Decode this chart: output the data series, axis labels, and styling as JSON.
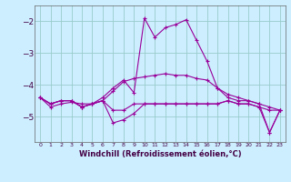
{
  "xlabel": "Windchill (Refroidissement éolien,°C)",
  "x": [
    0,
    1,
    2,
    3,
    4,
    5,
    6,
    7,
    8,
    9,
    10,
    11,
    12,
    13,
    14,
    15,
    16,
    17,
    18,
    19,
    20,
    21,
    22,
    23
  ],
  "line1": [
    -4.4,
    -4.6,
    -4.5,
    -4.5,
    -4.7,
    -4.6,
    -4.5,
    -4.8,
    -4.8,
    -4.6,
    -4.6,
    -4.6,
    -4.6,
    -4.6,
    -4.6,
    -4.6,
    -4.6,
    -4.6,
    -4.5,
    -4.6,
    -4.6,
    -4.7,
    -4.8,
    -4.8
  ],
  "line2": [
    -4.4,
    -4.6,
    -4.5,
    -4.5,
    -4.7,
    -4.6,
    -4.5,
    -5.2,
    -5.1,
    -4.9,
    -4.6,
    -4.6,
    -4.6,
    -4.6,
    -4.6,
    -4.6,
    -4.6,
    -4.6,
    -4.5,
    -4.6,
    -4.6,
    -4.7,
    -5.5,
    -4.8
  ],
  "line3": [
    -4.4,
    -4.6,
    -4.5,
    -4.5,
    -4.7,
    -4.6,
    -4.4,
    -4.1,
    -3.85,
    -4.25,
    -1.9,
    -2.5,
    -2.2,
    -2.1,
    -1.95,
    -2.6,
    -3.25,
    -4.1,
    -4.4,
    -4.5,
    -4.5,
    -4.6,
    -5.5,
    -4.8
  ],
  "line4": [
    -4.4,
    -4.7,
    -4.6,
    -4.55,
    -4.6,
    -4.6,
    -4.5,
    -4.2,
    -3.9,
    -3.8,
    -3.75,
    -3.7,
    -3.65,
    -3.7,
    -3.7,
    -3.8,
    -3.85,
    -4.1,
    -4.3,
    -4.4,
    -4.5,
    -4.6,
    -4.7,
    -4.8
  ],
  "line_color": "#990099",
  "bg_color": "#cceeff",
  "grid_color": "#99cccc",
  "ylim": [
    -5.8,
    -1.5
  ],
  "yticks": [
    -5,
    -4,
    -3,
    -2
  ],
  "xlim": [
    -0.5,
    23.5
  ]
}
